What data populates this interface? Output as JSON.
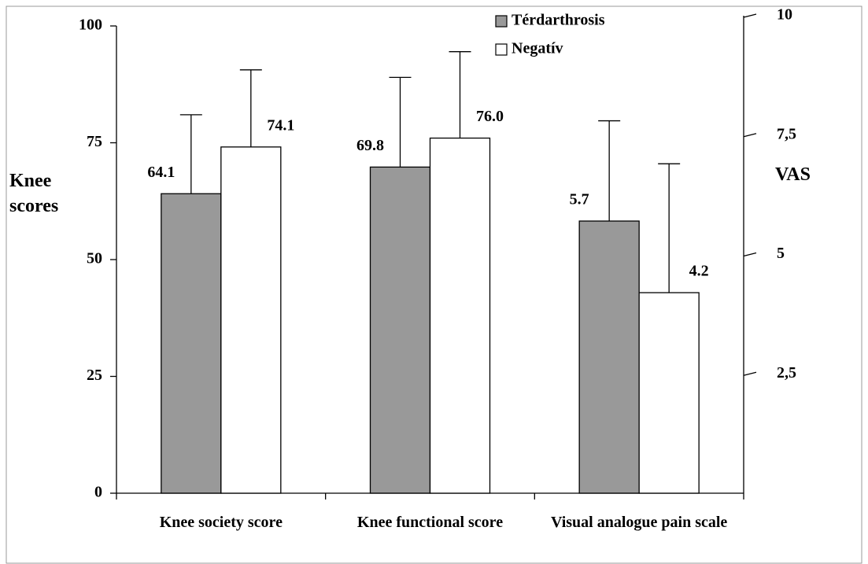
{
  "chart_data": {
    "type": "bar",
    "categories": [
      "Knee society score",
      "Knee functional score",
      "Visual analogue pain scale"
    ],
    "category_axes": [
      "y",
      "y",
      "y2"
    ],
    "series": [
      {
        "name": "Térdarthrosis",
        "color": "#999999",
        "values": [
          64.1,
          69.8,
          5.7
        ],
        "value_labels": [
          "64.1",
          "69.8",
          "5.7"
        ],
        "errors": [
          16.9,
          19.2,
          2.1
        ]
      },
      {
        "name": "Negatív",
        "color": "#ffffff",
        "values": [
          74.1,
          76,
          4.2
        ],
        "value_labels": [
          "74.1",
          "76.0",
          "4.2"
        ],
        "errors": [
          16.5,
          18.5,
          2.7
        ]
      }
    ],
    "ylabel": "Knee scores",
    "y2label": "VAS",
    "ylim": [
      0,
      100
    ],
    "yticks": [
      0,
      25,
      50,
      75,
      100
    ],
    "y2lim": [
      0,
      10
    ],
    "y2ticks": [
      {
        "value": 2.5,
        "label": "2,5"
      },
      5,
      {
        "value": 7.5,
        "label": "7,5"
      },
      10
    ],
    "legend": "top"
  }
}
